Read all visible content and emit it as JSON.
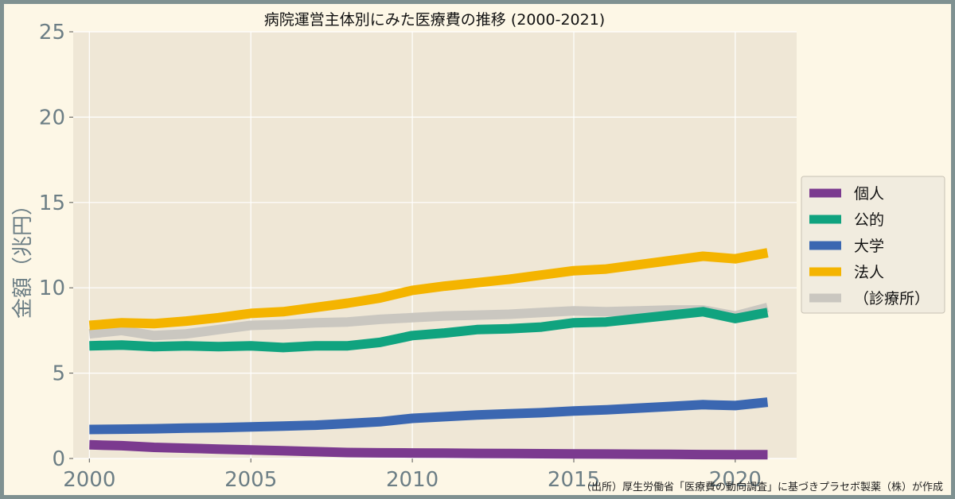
{
  "chart_data": {
    "type": "line",
    "title": "病院運営主体別にみた医療費の推移 (2000-2021)",
    "xlabel": "",
    "ylabel": "金額（兆円）",
    "xlim": [
      1999.5,
      2021.9
    ],
    "ylim": [
      0,
      25
    ],
    "xticks": [
      2000,
      2005,
      2010,
      2015,
      2020
    ],
    "yticks": [
      0,
      5,
      10,
      15,
      20,
      25
    ],
    "grid": true,
    "legend_position": "right",
    "x": [
      2000,
      2001,
      2002,
      2003,
      2004,
      2005,
      2006,
      2007,
      2008,
      2009,
      2010,
      2011,
      2012,
      2013,
      2014,
      2015,
      2016,
      2017,
      2018,
      2019,
      2020,
      2021
    ],
    "series": [
      {
        "name": "個人",
        "color": "#7b3a8f",
        "values": [
          0.8,
          0.75,
          0.65,
          0.6,
          0.55,
          0.5,
          0.45,
          0.4,
          0.35,
          0.33,
          0.32,
          0.31,
          0.3,
          0.29,
          0.28,
          0.27,
          0.26,
          0.25,
          0.24,
          0.23,
          0.22,
          0.22
        ]
      },
      {
        "name": "公的",
        "color": "#10a37f",
        "values": [
          6.6,
          6.65,
          6.55,
          6.6,
          6.55,
          6.6,
          6.5,
          6.6,
          6.6,
          6.8,
          7.2,
          7.35,
          7.55,
          7.6,
          7.7,
          7.95,
          8.0,
          8.2,
          8.4,
          8.6,
          8.2,
          8.55
        ]
      },
      {
        "name": "大学",
        "color": "#3b67b1",
        "values": [
          1.7,
          1.72,
          1.74,
          1.78,
          1.8,
          1.85,
          1.9,
          1.95,
          2.05,
          2.15,
          2.35,
          2.45,
          2.55,
          2.62,
          2.68,
          2.78,
          2.85,
          2.95,
          3.05,
          3.15,
          3.1,
          3.3
        ]
      },
      {
        "name": "法人",
        "color": "#f4b400",
        "values": [
          7.8,
          7.95,
          7.9,
          8.05,
          8.25,
          8.5,
          8.6,
          8.85,
          9.1,
          9.4,
          9.85,
          10.1,
          10.3,
          10.5,
          10.75,
          11.0,
          11.1,
          11.35,
          11.6,
          11.85,
          11.7,
          12.05
        ]
      },
      {
        "name": "（診療所）",
        "color": "#cac7c0",
        "values": [
          7.3,
          7.5,
          7.2,
          7.3,
          7.55,
          7.8,
          7.85,
          7.95,
          8.0,
          8.15,
          8.25,
          8.35,
          8.4,
          8.45,
          8.55,
          8.65,
          8.6,
          8.65,
          8.7,
          8.7,
          8.35,
          8.85
        ]
      }
    ]
  },
  "source_note": "（出所）厚生労働省「医療費の動向調査」に基づきプラセボ製薬（株）が作成"
}
